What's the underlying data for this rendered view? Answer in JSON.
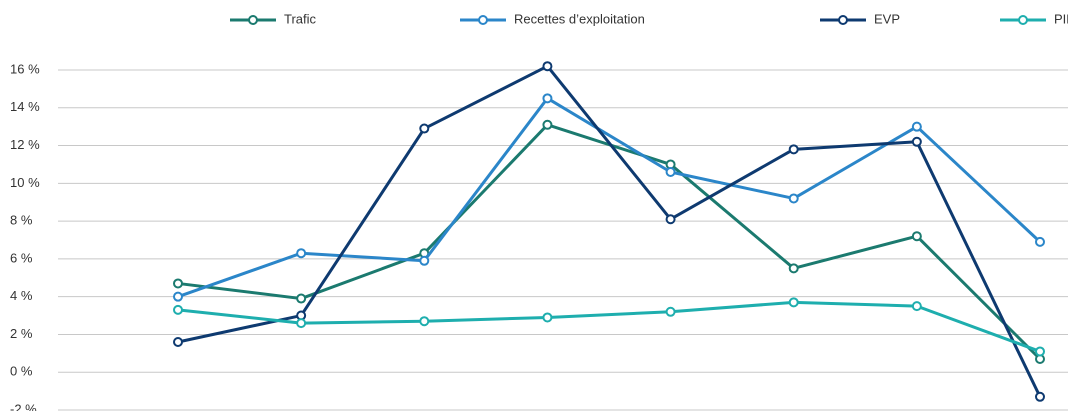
{
  "chart_data": {
    "type": "line",
    "categories": [
      null,
      null,
      null,
      null,
      null,
      null,
      null,
      null
    ],
    "series": [
      {
        "name": "Trafic",
        "color": "#1b7a6f",
        "values": [
          4.7,
          3.9,
          6.3,
          13.1,
          11.0,
          5.5,
          7.2,
          0.7
        ]
      },
      {
        "name": "Recettes d’exploitation",
        "color": "#2b86c9",
        "values": [
          4.0,
          6.3,
          5.9,
          14.5,
          10.6,
          9.2,
          13.0,
          6.9
        ]
      },
      {
        "name": "EVP",
        "color": "#0e3a70",
        "values": [
          1.6,
          3.0,
          12.9,
          16.2,
          8.1,
          11.8,
          12.2,
          -1.3
        ]
      },
      {
        "name": "PIB",
        "color": "#1eaeae",
        "values": [
          3.3,
          2.6,
          2.7,
          2.9,
          3.2,
          3.7,
          3.5,
          1.1
        ]
      }
    ],
    "ylim": [
      -2,
      16
    ],
    "yticks": [
      {
        "value": -2,
        "label": "-2 %"
      },
      {
        "value": 0,
        "label": "0 %"
      },
      {
        "value": 2,
        "label": "2 %"
      },
      {
        "value": 4,
        "label": "4 %"
      },
      {
        "value": 6,
        "label": "6 %"
      },
      {
        "value": 8,
        "label": "8 %"
      },
      {
        "value": 10,
        "label": "10 %"
      },
      {
        "value": 12,
        "label": "12 %"
      },
      {
        "value": 14,
        "label": "14 %"
      },
      {
        "value": 16,
        "label": "16 %"
      }
    ],
    "grid": true,
    "legend": "top"
  }
}
